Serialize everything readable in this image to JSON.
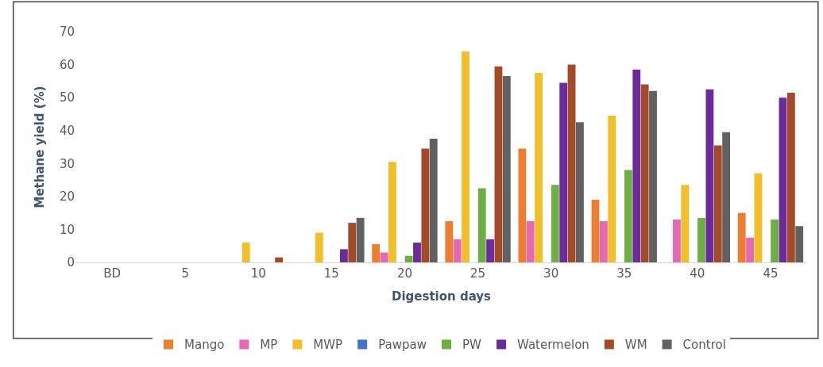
{
  "chart_data": {
    "type": "bar",
    "xlabel": "Digestion days",
    "ylabel": "Methane yield (%)",
    "categories": [
      "BD",
      "5",
      "10",
      "15",
      "20",
      "25",
      "30",
      "35",
      "40",
      "45"
    ],
    "ylim": [
      0,
      70
    ],
    "yticks": [
      0,
      10,
      20,
      30,
      40,
      50,
      60,
      70
    ],
    "grid": false,
    "legend": "bottom",
    "series": [
      {
        "name": "Mango",
        "color": "#ed7d31",
        "values": [
          0,
          0,
          0,
          0,
          5.5,
          12.5,
          34.5,
          19,
          0,
          15
        ]
      },
      {
        "name": "MP",
        "color": "#e668b3",
        "values": [
          0,
          0,
          0,
          0,
          3,
          7,
          12.5,
          12.5,
          13,
          7.5
        ]
      },
      {
        "name": "MWP",
        "color": "#f2bf2a",
        "values": [
          0,
          0,
          6,
          9,
          30.5,
          64,
          57.5,
          44.5,
          23.5,
          27
        ]
      },
      {
        "name": "Pawpaw",
        "color": "#4472c4",
        "values": [
          0,
          0,
          0,
          0,
          0,
          0,
          0,
          0,
          0,
          0
        ]
      },
      {
        "name": "PW",
        "color": "#6fad47",
        "values": [
          0,
          0,
          0,
          0,
          2,
          22.5,
          23.5,
          28,
          13.5,
          13
        ]
      },
      {
        "name": "Watermelon",
        "color": "#6a2c9a",
        "values": [
          0,
          0,
          0,
          4,
          6,
          7,
          54.5,
          58.5,
          52.5,
          50
        ]
      },
      {
        "name": "WM",
        "color": "#a34a28",
        "values": [
          0,
          0,
          1.5,
          12,
          34.5,
          59.5,
          60,
          54,
          35.5,
          51.5
        ]
      },
      {
        "name": "Control",
        "color": "#616161",
        "values": [
          0,
          0,
          0,
          13.5,
          37.5,
          56.5,
          42.5,
          52,
          39.5,
          11
        ]
      }
    ]
  }
}
